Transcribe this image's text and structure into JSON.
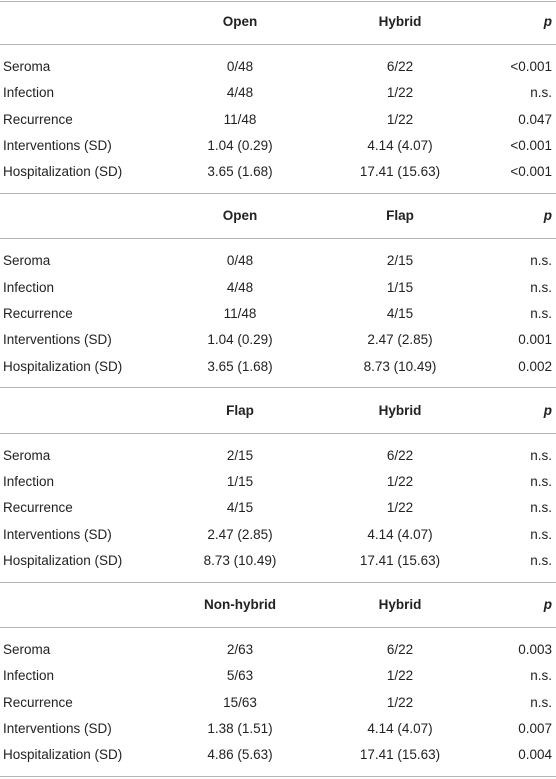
{
  "sections": [
    {
      "header": {
        "group_a": "Open",
        "group_b": "Hybrid",
        "p": "p"
      },
      "rows": [
        [
          "Seroma",
          "0/48",
          "6/22",
          "<0.001"
        ],
        [
          "Infection",
          "4/48",
          "1/22",
          "n.s."
        ],
        [
          "Recurrence",
          "11/48",
          "1/22",
          "0.047"
        ],
        [
          "Interventions (SD)",
          "1.04 (0.29)",
          "4.14 (4.07)",
          "<0.001"
        ],
        [
          "Hospitalization (SD)",
          "3.65 (1.68)",
          "17.41 (15.63)",
          "<0.001"
        ]
      ]
    },
    {
      "header": {
        "group_a": "Open",
        "group_b": "Flap",
        "p": "p"
      },
      "rows": [
        [
          "Seroma",
          "0/48",
          "2/15",
          "n.s."
        ],
        [
          "Infection",
          "4/48",
          "1/15",
          "n.s."
        ],
        [
          "Recurrence",
          "11/48",
          "4/15",
          "n.s."
        ],
        [
          "Interventions (SD)",
          "1.04 (0.29)",
          "2.47 (2.85)",
          "0.001"
        ],
        [
          "Hospitalization (SD)",
          "3.65 (1.68)",
          "8.73 (10.49)",
          "0.002"
        ]
      ]
    },
    {
      "header": {
        "group_a": "Flap",
        "group_b": "Hybrid",
        "p": "p"
      },
      "rows": [
        [
          "Seroma",
          "2/15",
          "6/22",
          "n.s."
        ],
        [
          "Infection",
          "1/15",
          "1/22",
          "n.s."
        ],
        [
          "Recurrence",
          "4/15",
          "1/22",
          "n.s."
        ],
        [
          "Interventions (SD)",
          "2.47 (2.85)",
          "4.14 (4.07)",
          "n.s."
        ],
        [
          "Hospitalization (SD)",
          "8.73 (10.49)",
          "17.41 (15.63)",
          "n.s."
        ]
      ]
    },
    {
      "header": {
        "group_a": "Non-hybrid",
        "group_b": "Hybrid",
        "p": "p"
      },
      "rows": [
        [
          "Seroma",
          "2/63",
          "6/22",
          "0.003"
        ],
        [
          "Infection",
          "5/63",
          "1/22",
          "n.s."
        ],
        [
          "Recurrence",
          "15/63",
          "1/22",
          "n.s."
        ],
        [
          "Interventions (SD)",
          "1.38 (1.51)",
          "4.14 (4.07)",
          "0.007"
        ],
        [
          "Hospitalization (SD)",
          "4.86 (5.63)",
          "17.41 (15.63)",
          "0.004"
        ]
      ]
    }
  ]
}
